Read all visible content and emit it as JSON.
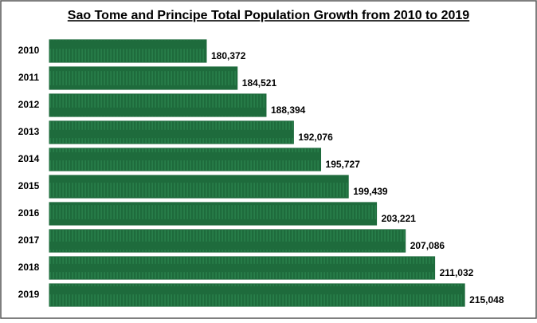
{
  "chart_data": {
    "type": "hbar",
    "title": "Sao Tome and Principe Total Population Growth from 2010 to 2019",
    "categories": [
      "2010",
      "2011",
      "2012",
      "2013",
      "2014",
      "2015",
      "2016",
      "2017",
      "2018",
      "2019"
    ],
    "values": [
      180372,
      184521,
      188394,
      192076,
      195727,
      199439,
      203221,
      207086,
      211032,
      215048
    ],
    "value_labels": [
      "180,372",
      "184,521",
      "188,394",
      "192,076",
      "195,727",
      "199,439",
      "203,221",
      "207,086",
      "211,032",
      "215,048"
    ],
    "color": "#1e6b3c",
    "xlim": [
      159300,
      222200
    ]
  }
}
